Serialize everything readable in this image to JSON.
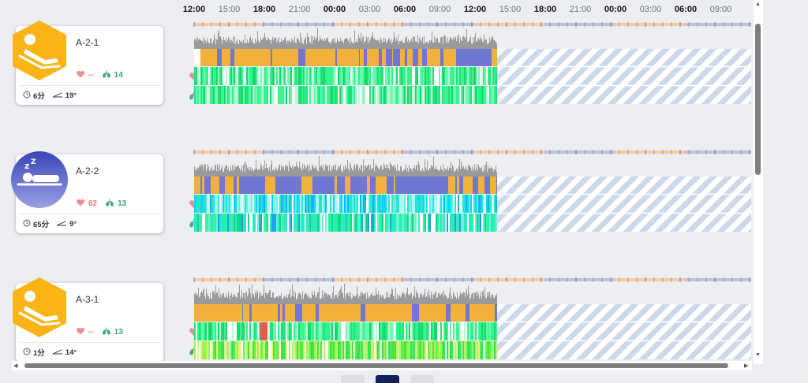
{
  "time_axis": {
    "labels": [
      {
        "text": "12:00",
        "bold": true
      },
      {
        "text": "15:00",
        "bold": false
      },
      {
        "text": "18:00",
        "bold": true
      },
      {
        "text": "21:00",
        "bold": false
      },
      {
        "text": "00:00",
        "bold": true
      },
      {
        "text": "03:00",
        "bold": false
      },
      {
        "text": "06:00",
        "bold": true
      },
      {
        "text": "09:00",
        "bold": false
      },
      {
        "text": "12:00",
        "bold": true
      },
      {
        "text": "15:00",
        "bold": false
      },
      {
        "text": "18:00",
        "bold": true
      },
      {
        "text": "21:00",
        "bold": false
      },
      {
        "text": "00:00",
        "bold": true
      },
      {
        "text": "03:00",
        "bold": false
      },
      {
        "text": "06:00",
        "bold": true
      },
      {
        "text": "09:00",
        "bold": false
      }
    ]
  },
  "patients": [
    {
      "name": "A-2-1",
      "status": "in-bed",
      "status_icon": "bed-person-icon",
      "heart_rate": "--",
      "respiration": "14",
      "duration": "6分",
      "angle": "19°",
      "recorded_fraction": 0.54,
      "colors": {
        "avatar": "#fbb315",
        "hr_band": "green",
        "rr_band": "green"
      }
    },
    {
      "name": "A-2-2",
      "status": "sleeping",
      "status_icon": "sleeping-person-icon",
      "heart_rate": "62",
      "respiration": "13",
      "duration": "65分",
      "angle": "9°",
      "recorded_fraction": 0.54,
      "colors": {
        "avatar": "#5b63c6",
        "hr_band": "cyan",
        "rr_band": "cyan-green"
      }
    },
    {
      "name": "A-3-1",
      "status": "in-bed",
      "status_icon": "bed-person-icon",
      "heart_rate": "--",
      "respiration": "13",
      "duration": "1分",
      "angle": "14°",
      "recorded_fraction": 0.54,
      "colors": {
        "avatar": "#fbb315",
        "hr_band": "green",
        "rr_band": "lime-green"
      }
    }
  ],
  "pagination": {
    "pages": 3,
    "active_page": 2
  }
}
